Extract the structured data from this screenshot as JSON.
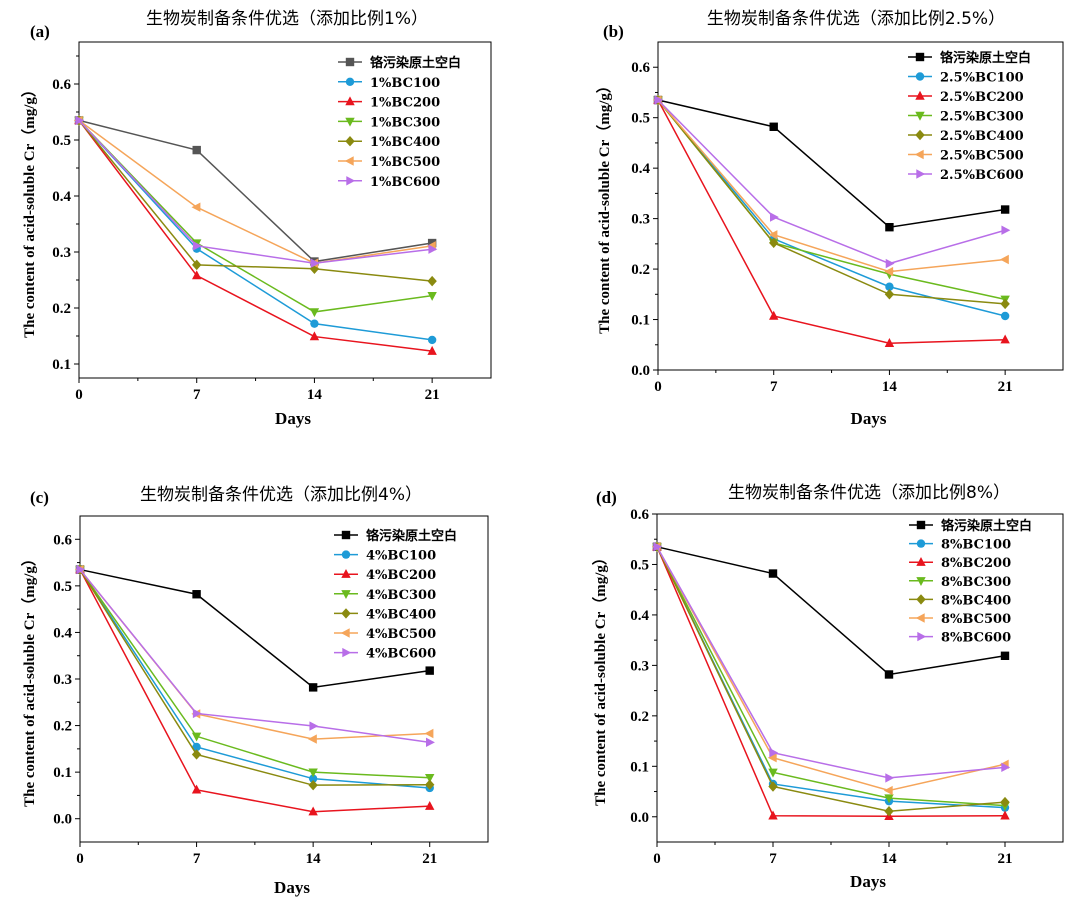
{
  "chart_data": [
    {
      "type": "line",
      "panel_label": "(a)",
      "title": "生物炭制备条件优选（添加比例1%）",
      "xlabel": "Days",
      "ylabel": "The content of acid-soluble Cr（mg/g）",
      "x": [
        0,
        7,
        14,
        21
      ],
      "xticks": [
        0,
        7,
        14,
        21
      ],
      "xlim": [
        0,
        24.5
      ],
      "ylim": [
        0.075,
        0.675
      ],
      "yticks": [
        "0.1",
        "0.2",
        "0.3",
        "0.4",
        "0.5",
        "0.6"
      ],
      "grid": false,
      "legend_position": "top-right",
      "series": [
        {
          "name": "铬污染原土空白",
          "color": "#555555",
          "marker": "square",
          "values": [
            0.535,
            0.482,
            0.283,
            0.316
          ]
        },
        {
          "name": "1%BC100",
          "color": "#1e9bd7",
          "marker": "circle",
          "values": [
            0.535,
            0.306,
            0.172,
            0.143
          ]
        },
        {
          "name": "1%BC200",
          "color": "#e8141e",
          "marker": "triangle-up",
          "values": [
            0.535,
            0.258,
            0.149,
            0.123
          ]
        },
        {
          "name": "1%BC300",
          "color": "#6aba1e",
          "marker": "triangle-down",
          "values": [
            0.535,
            0.316,
            0.193,
            0.222
          ]
        },
        {
          "name": "1%BC400",
          "color": "#8a8a10",
          "marker": "diamond",
          "values": [
            0.535,
            0.277,
            0.27,
            0.248
          ]
        },
        {
          "name": "1%BC500",
          "color": "#f5a55a",
          "marker": "triangle-left",
          "values": [
            0.535,
            0.38,
            0.28,
            0.311
          ]
        },
        {
          "name": "1%BC600",
          "color": "#b86ee8",
          "marker": "triangle-right",
          "values": [
            0.535,
            0.311,
            0.28,
            0.305
          ]
        }
      ]
    },
    {
      "type": "line",
      "panel_label": "(b)",
      "title": "生物炭制备条件优选（添加比例2.5%）",
      "xlabel": "Days",
      "ylabel": "The content of acid-soluble Cr（mg/g）",
      "x": [
        0,
        7,
        14,
        21
      ],
      "xticks": [
        0,
        7,
        14,
        21
      ],
      "xlim": [
        0,
        24.5
      ],
      "ylim": [
        0,
        0.65
      ],
      "yticks": [
        "0.0",
        "0.1",
        "0.2",
        "0.3",
        "0.4",
        "0.5",
        "0.6"
      ],
      "grid": false,
      "legend_position": "top-right",
      "series": [
        {
          "name": "铬污染原土空白",
          "color": "#000000",
          "marker": "square",
          "values": [
            0.535,
            0.482,
            0.283,
            0.318
          ]
        },
        {
          "name": "2.5%BC100",
          "color": "#1e9bd7",
          "marker": "circle",
          "values": [
            0.535,
            0.26,
            0.165,
            0.107
          ]
        },
        {
          "name": "2.5%BC200",
          "color": "#e8141e",
          "marker": "triangle-up",
          "values": [
            0.535,
            0.107,
            0.053,
            0.06
          ]
        },
        {
          "name": "2.5%BC300",
          "color": "#6aba1e",
          "marker": "triangle-down",
          "values": [
            0.535,
            0.252,
            0.19,
            0.14
          ]
        },
        {
          "name": "2.5%BC400",
          "color": "#8a8a10",
          "marker": "diamond",
          "values": [
            0.535,
            0.252,
            0.15,
            0.131
          ]
        },
        {
          "name": "2.5%BC500",
          "color": "#f5a55a",
          "marker": "triangle-left",
          "values": [
            0.535,
            0.268,
            0.195,
            0.219
          ]
        },
        {
          "name": "2.5%BC600",
          "color": "#b86ee8",
          "marker": "triangle-right",
          "values": [
            0.535,
            0.303,
            0.211,
            0.277
          ]
        }
      ]
    },
    {
      "type": "line",
      "panel_label": "(c)",
      "title": "生物炭制备条件优选（添加比例4%）",
      "xlabel": "Days",
      "ylabel": "The content of acid-soluble Cr（mg/g）",
      "x": [
        0,
        7,
        14,
        21
      ],
      "xticks": [
        0,
        7,
        14,
        21
      ],
      "xlim": [
        0,
        24.5
      ],
      "ylim": [
        -0.05,
        0.65
      ],
      "yticks": [
        "0.0",
        "0.1",
        "0.2",
        "0.3",
        "0.4",
        "0.5",
        "0.6"
      ],
      "grid": false,
      "legend_position": "top-right",
      "series": [
        {
          "name": "铬污染原土空白",
          "color": "#000000",
          "marker": "square",
          "values": [
            0.535,
            0.482,
            0.282,
            0.318
          ]
        },
        {
          "name": "4%BC100",
          "color": "#1e9bd7",
          "marker": "circle",
          "values": [
            0.535,
            0.154,
            0.086,
            0.066
          ]
        },
        {
          "name": "4%BC200",
          "color": "#e8141e",
          "marker": "triangle-up",
          "values": [
            0.535,
            0.062,
            0.015,
            0.027
          ]
        },
        {
          "name": "4%BC300",
          "color": "#6aba1e",
          "marker": "triangle-down",
          "values": [
            0.535,
            0.177,
            0.1,
            0.088
          ]
        },
        {
          "name": "4%BC400",
          "color": "#8a8a10",
          "marker": "diamond",
          "values": [
            0.535,
            0.138,
            0.072,
            0.073
          ]
        },
        {
          "name": "4%BC500",
          "color": "#f5a55a",
          "marker": "triangle-left",
          "values": [
            0.535,
            0.225,
            0.171,
            0.183
          ]
        },
        {
          "name": "4%BC600",
          "color": "#b86ee8",
          "marker": "triangle-right",
          "values": [
            0.535,
            0.226,
            0.199,
            0.164
          ]
        }
      ]
    },
    {
      "type": "line",
      "panel_label": "(d)",
      "title": "生物炭制备条件优选（添加比例8%）",
      "xlabel": "Days",
      "ylabel": "The content of acid-soluble Cr（mg/g）",
      "x": [
        0,
        7,
        14,
        21
      ],
      "xticks": [
        0,
        7,
        14,
        21
      ],
      "xlim": [
        0,
        24.5
      ],
      "ylim": [
        -0.05,
        0.6
      ],
      "yticks": [
        "0.0",
        "0.1",
        "0.2",
        "0.3",
        "0.4",
        "0.5",
        "0.6"
      ],
      "grid": false,
      "legend_position": "top-right",
      "series": [
        {
          "name": "铬污染原土空白",
          "color": "#000000",
          "marker": "square",
          "values": [
            0.535,
            0.482,
            0.282,
            0.319
          ]
        },
        {
          "name": "8%BC100",
          "color": "#1e9bd7",
          "marker": "circle",
          "values": [
            0.535,
            0.065,
            0.031,
            0.018
          ]
        },
        {
          "name": "8%BC200",
          "color": "#e8141e",
          "marker": "triangle-up",
          "values": [
            0.535,
            0.002,
            0.001,
            0.002
          ]
        },
        {
          "name": "8%BC300",
          "color": "#6aba1e",
          "marker": "triangle-down",
          "values": [
            0.535,
            0.088,
            0.037,
            0.022
          ]
        },
        {
          "name": "8%BC400",
          "color": "#8a8a10",
          "marker": "diamond",
          "values": [
            0.535,
            0.06,
            0.011,
            0.029
          ]
        },
        {
          "name": "8%BC500",
          "color": "#f5a55a",
          "marker": "triangle-left",
          "values": [
            0.535,
            0.117,
            0.052,
            0.104
          ]
        },
        {
          "name": "8%BC600",
          "color": "#b86ee8",
          "marker": "triangle-right",
          "values": [
            0.535,
            0.127,
            0.077,
            0.098
          ]
        }
      ]
    }
  ]
}
